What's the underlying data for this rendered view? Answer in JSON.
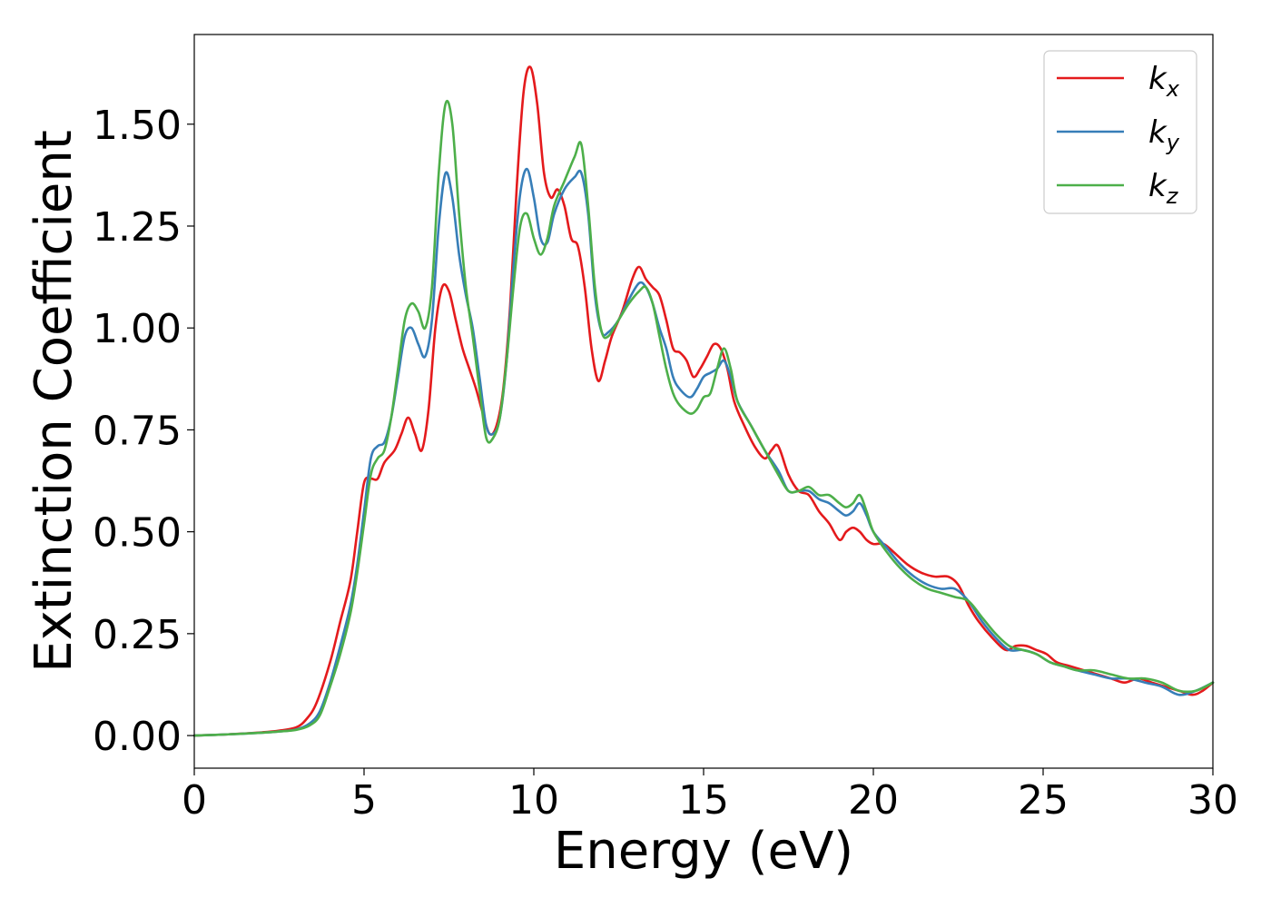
{
  "chart_data": {
    "type": "line",
    "title": "",
    "xlabel": "Energy (eV)",
    "ylabel": "Extinction Coefficient",
    "xlim": [
      0,
      30
    ],
    "ylim": [
      -0.08,
      1.72
    ],
    "xticks": [
      0,
      5,
      10,
      15,
      20,
      25,
      30
    ],
    "xtick_labels": [
      "0",
      "5",
      "10",
      "15",
      "20",
      "25",
      "30"
    ],
    "yticks": [
      0.0,
      0.25,
      0.5,
      0.75,
      1.0,
      1.25,
      1.5
    ],
    "ytick_labels": [
      "0.00",
      "0.25",
      "0.50",
      "0.75",
      "1.00",
      "1.25",
      "1.50"
    ],
    "grid": false,
    "legend_position": "top-right",
    "series": [
      {
        "name": "k",
        "subscript": "x",
        "color": "#e41a1c",
        "x": [
          0,
          1,
          2,
          2.5,
          3,
          3.3,
          3.6,
          4.0,
          4.3,
          4.6,
          4.8,
          5.0,
          5.2,
          5.4,
          5.6,
          5.9,
          6.1,
          6.3,
          6.5,
          6.7,
          6.9,
          7.1,
          7.3,
          7.5,
          7.7,
          7.9,
          8.1,
          8.3,
          8.5,
          8.7,
          8.9,
          9.1,
          9.3,
          9.5,
          9.7,
          9.9,
          10.1,
          10.3,
          10.5,
          10.7,
          10.9,
          11.1,
          11.3,
          11.5,
          11.7,
          11.9,
          12.1,
          12.3,
          12.6,
          12.9,
          13.1,
          13.3,
          13.5,
          13.7,
          13.9,
          14.1,
          14.3,
          14.5,
          14.7,
          14.9,
          15.1,
          15.3,
          15.5,
          15.7,
          15.9,
          16.2,
          16.5,
          16.8,
          17.0,
          17.2,
          17.5,
          17.8,
          18.1,
          18.4,
          18.7,
          19.0,
          19.2,
          19.4,
          19.6,
          19.8,
          20.0,
          20.3,
          20.6,
          21.0,
          21.4,
          21.8,
          22.2,
          22.5,
          22.8,
          23.1,
          23.5,
          23.9,
          24.2,
          24.5,
          24.8,
          25.1,
          25.4,
          25.8,
          26.2,
          26.6,
          27.0,
          27.4,
          27.8,
          28.2,
          28.6,
          29.0,
          29.4,
          29.7,
          30.0
        ],
        "y": [
          0.0,
          0.003,
          0.008,
          0.012,
          0.02,
          0.04,
          0.08,
          0.18,
          0.28,
          0.38,
          0.5,
          0.62,
          0.63,
          0.63,
          0.67,
          0.7,
          0.74,
          0.78,
          0.74,
          0.7,
          0.8,
          1.0,
          1.1,
          1.09,
          1.02,
          0.95,
          0.9,
          0.85,
          0.79,
          0.74,
          0.76,
          0.85,
          1.05,
          1.35,
          1.58,
          1.64,
          1.55,
          1.38,
          1.32,
          1.34,
          1.3,
          1.22,
          1.2,
          1.1,
          0.95,
          0.87,
          0.92,
          0.98,
          1.04,
          1.12,
          1.15,
          1.12,
          1.1,
          1.08,
          1.02,
          0.95,
          0.94,
          0.92,
          0.88,
          0.9,
          0.93,
          0.96,
          0.95,
          0.9,
          0.82,
          0.76,
          0.71,
          0.68,
          0.7,
          0.71,
          0.64,
          0.6,
          0.59,
          0.55,
          0.52,
          0.48,
          0.5,
          0.51,
          0.5,
          0.48,
          0.47,
          0.47,
          0.45,
          0.42,
          0.4,
          0.39,
          0.39,
          0.37,
          0.32,
          0.28,
          0.24,
          0.21,
          0.22,
          0.22,
          0.21,
          0.2,
          0.18,
          0.17,
          0.16,
          0.15,
          0.14,
          0.13,
          0.14,
          0.13,
          0.12,
          0.11,
          0.1,
          0.11,
          0.13
        ]
      },
      {
        "name": "k",
        "subscript": "y",
        "color": "#377eb8",
        "x": [
          0,
          1,
          2,
          2.5,
          3,
          3.4,
          3.7,
          4.0,
          4.3,
          4.6,
          4.8,
          5.0,
          5.2,
          5.4,
          5.6,
          5.8,
          6.0,
          6.2,
          6.4,
          6.6,
          6.8,
          7.0,
          7.2,
          7.4,
          7.6,
          7.8,
          8.0,
          8.2,
          8.4,
          8.6,
          8.8,
          9.0,
          9.2,
          9.4,
          9.6,
          9.8,
          10.0,
          10.2,
          10.4,
          10.6,
          10.9,
          11.2,
          11.4,
          11.6,
          11.8,
          12.0,
          12.2,
          12.5,
          12.8,
          13.1,
          13.3,
          13.5,
          13.7,
          13.9,
          14.1,
          14.3,
          14.6,
          14.8,
          15.0,
          15.2,
          15.4,
          15.6,
          15.8,
          16.0,
          16.4,
          16.8,
          17.2,
          17.5,
          17.8,
          18.1,
          18.4,
          18.7,
          19.0,
          19.2,
          19.4,
          19.6,
          19.8,
          20.0,
          20.4,
          20.8,
          21.2,
          21.6,
          22.0,
          22.4,
          22.8,
          23.2,
          23.6,
          24.0,
          24.4,
          24.8,
          25.2,
          25.6,
          26.0,
          26.5,
          27.0,
          27.5,
          28.0,
          28.5,
          29.0,
          29.5,
          30.0
        ],
        "y": [
          0.0,
          0.003,
          0.007,
          0.01,
          0.015,
          0.03,
          0.06,
          0.13,
          0.22,
          0.32,
          0.42,
          0.55,
          0.68,
          0.71,
          0.72,
          0.78,
          0.88,
          0.98,
          1.0,
          0.96,
          0.93,
          1.02,
          1.25,
          1.38,
          1.32,
          1.18,
          1.08,
          1.0,
          0.88,
          0.76,
          0.74,
          0.78,
          0.92,
          1.15,
          1.33,
          1.39,
          1.32,
          1.22,
          1.21,
          1.28,
          1.34,
          1.37,
          1.38,
          1.28,
          1.08,
          0.99,
          0.99,
          1.02,
          1.07,
          1.11,
          1.1,
          1.06,
          1.0,
          0.95,
          0.88,
          0.85,
          0.83,
          0.85,
          0.88,
          0.89,
          0.9,
          0.92,
          0.88,
          0.82,
          0.76,
          0.7,
          0.65,
          0.6,
          0.6,
          0.6,
          0.58,
          0.57,
          0.55,
          0.54,
          0.55,
          0.57,
          0.54,
          0.5,
          0.46,
          0.42,
          0.39,
          0.37,
          0.36,
          0.36,
          0.33,
          0.28,
          0.24,
          0.21,
          0.21,
          0.2,
          0.18,
          0.17,
          0.16,
          0.15,
          0.14,
          0.14,
          0.13,
          0.12,
          0.1,
          0.11,
          0.13
        ]
      },
      {
        "name": "k",
        "subscript": "z",
        "color": "#4daf4a",
        "x": [
          0,
          1,
          2,
          2.5,
          3,
          3.4,
          3.7,
          4.0,
          4.3,
          4.6,
          4.8,
          5.0,
          5.2,
          5.4,
          5.6,
          5.8,
          6.0,
          6.2,
          6.4,
          6.6,
          6.8,
          7.0,
          7.2,
          7.4,
          7.6,
          7.8,
          8.0,
          8.2,
          8.4,
          8.6,
          8.8,
          9.0,
          9.2,
          9.4,
          9.6,
          9.8,
          10.0,
          10.2,
          10.4,
          10.6,
          10.9,
          11.2,
          11.4,
          11.6,
          11.8,
          12.0,
          12.2,
          12.5,
          12.8,
          13.1,
          13.3,
          13.5,
          13.7,
          13.9,
          14.1,
          14.3,
          14.6,
          14.8,
          15.0,
          15.2,
          15.4,
          15.6,
          15.8,
          16.0,
          16.4,
          16.8,
          17.2,
          17.5,
          17.8,
          18.1,
          18.4,
          18.7,
          19.0,
          19.2,
          19.4,
          19.6,
          19.8,
          20.0,
          20.4,
          20.8,
          21.2,
          21.6,
          22.0,
          22.4,
          22.8,
          23.2,
          23.6,
          24.0,
          24.4,
          24.8,
          25.2,
          25.6,
          26.0,
          26.5,
          27.0,
          27.5,
          28.0,
          28.5,
          29.0,
          29.5,
          30.0
        ],
        "y": [
          0.0,
          0.003,
          0.007,
          0.01,
          0.014,
          0.025,
          0.05,
          0.12,
          0.2,
          0.3,
          0.4,
          0.52,
          0.64,
          0.68,
          0.7,
          0.78,
          0.9,
          1.02,
          1.06,
          1.04,
          1.0,
          1.1,
          1.38,
          1.55,
          1.5,
          1.28,
          1.1,
          0.98,
          0.85,
          0.73,
          0.73,
          0.78,
          0.92,
          1.1,
          1.25,
          1.28,
          1.22,
          1.18,
          1.22,
          1.3,
          1.36,
          1.42,
          1.45,
          1.3,
          1.1,
          0.99,
          0.98,
          1.02,
          1.06,
          1.09,
          1.1,
          1.06,
          0.98,
          0.9,
          0.84,
          0.81,
          0.79,
          0.8,
          0.83,
          0.84,
          0.9,
          0.95,
          0.9,
          0.82,
          0.76,
          0.7,
          0.64,
          0.6,
          0.6,
          0.61,
          0.59,
          0.59,
          0.57,
          0.56,
          0.57,
          0.59,
          0.55,
          0.5,
          0.45,
          0.41,
          0.38,
          0.36,
          0.35,
          0.34,
          0.33,
          0.29,
          0.25,
          0.22,
          0.21,
          0.2,
          0.18,
          0.17,
          0.16,
          0.16,
          0.15,
          0.14,
          0.14,
          0.13,
          0.11,
          0.11,
          0.13
        ]
      }
    ]
  }
}
